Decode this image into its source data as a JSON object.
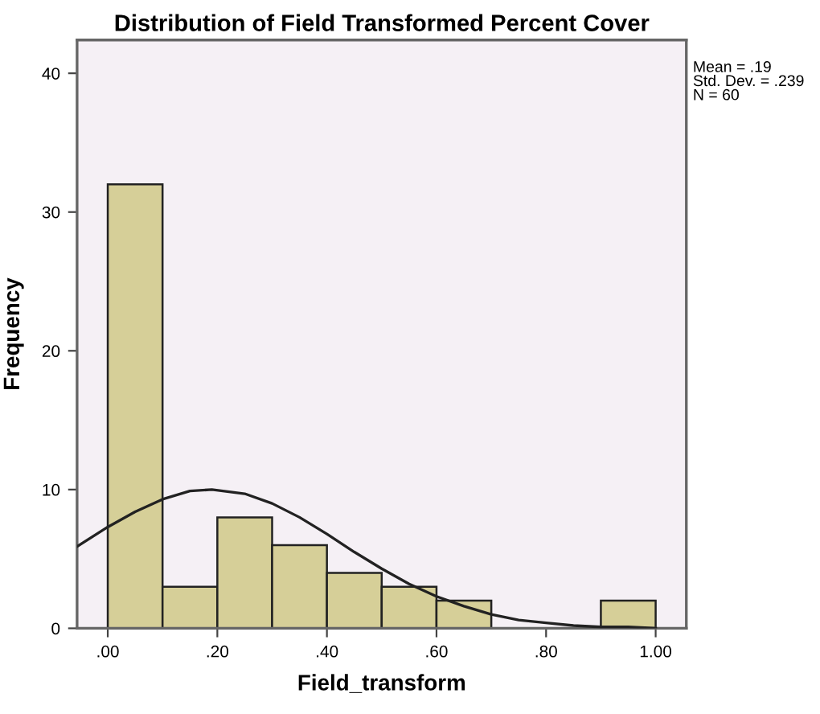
{
  "chart_data": {
    "type": "histogram",
    "title": "Distribution of Field Transformed Percent Cover",
    "xlabel": "Field_transform",
    "ylabel": "Frequency",
    "bins": [
      0,
      0.1,
      0.2,
      0.3,
      0.4,
      0.5,
      0.6,
      0.7,
      0.8,
      0.9,
      1.0
    ],
    "values": [
      32,
      3,
      8,
      6,
      4,
      3,
      2,
      0,
      0,
      2
    ],
    "color": "#d6cf98",
    "series": [
      {
        "type": "line",
        "color": "#222222",
        "x": [
          -0.056,
          0.0,
          0.05,
          0.1,
          0.15,
          0.19,
          0.25,
          0.3,
          0.35,
          0.4,
          0.45,
          0.5,
          0.55,
          0.6,
          0.65,
          0.7,
          0.75,
          0.8,
          0.85,
          0.9,
          0.95,
          1.0
        ],
        "values": [
          5.9,
          7.3,
          8.4,
          9.3,
          9.9,
          10.0,
          9.7,
          9.0,
          8.0,
          6.8,
          5.5,
          4.3,
          3.2,
          2.3,
          1.6,
          1.0,
          0.6,
          0.4,
          0.2,
          0.1,
          0.1,
          0.0
        ]
      }
    ],
    "xlim": [
      -0.056,
      1.056
    ],
    "ylim": [
      0,
      42.4
    ],
    "xticks": [
      {
        "value": 0,
        "label": ".00"
      },
      {
        "value": 0.2,
        "label": ".20"
      },
      {
        "value": 0.4,
        "label": ".40"
      },
      {
        "value": 0.6,
        "label": ".60"
      },
      {
        "value": 0.8,
        "label": ".80"
      },
      {
        "value": 1.0,
        "label": "1.00"
      }
    ],
    "yticks": [
      0,
      10,
      20,
      30,
      40
    ],
    "grid": false,
    "legend": false,
    "annotations": [
      "Mean = .19\nStd. Dev. = .239\nN = 60"
    ]
  }
}
